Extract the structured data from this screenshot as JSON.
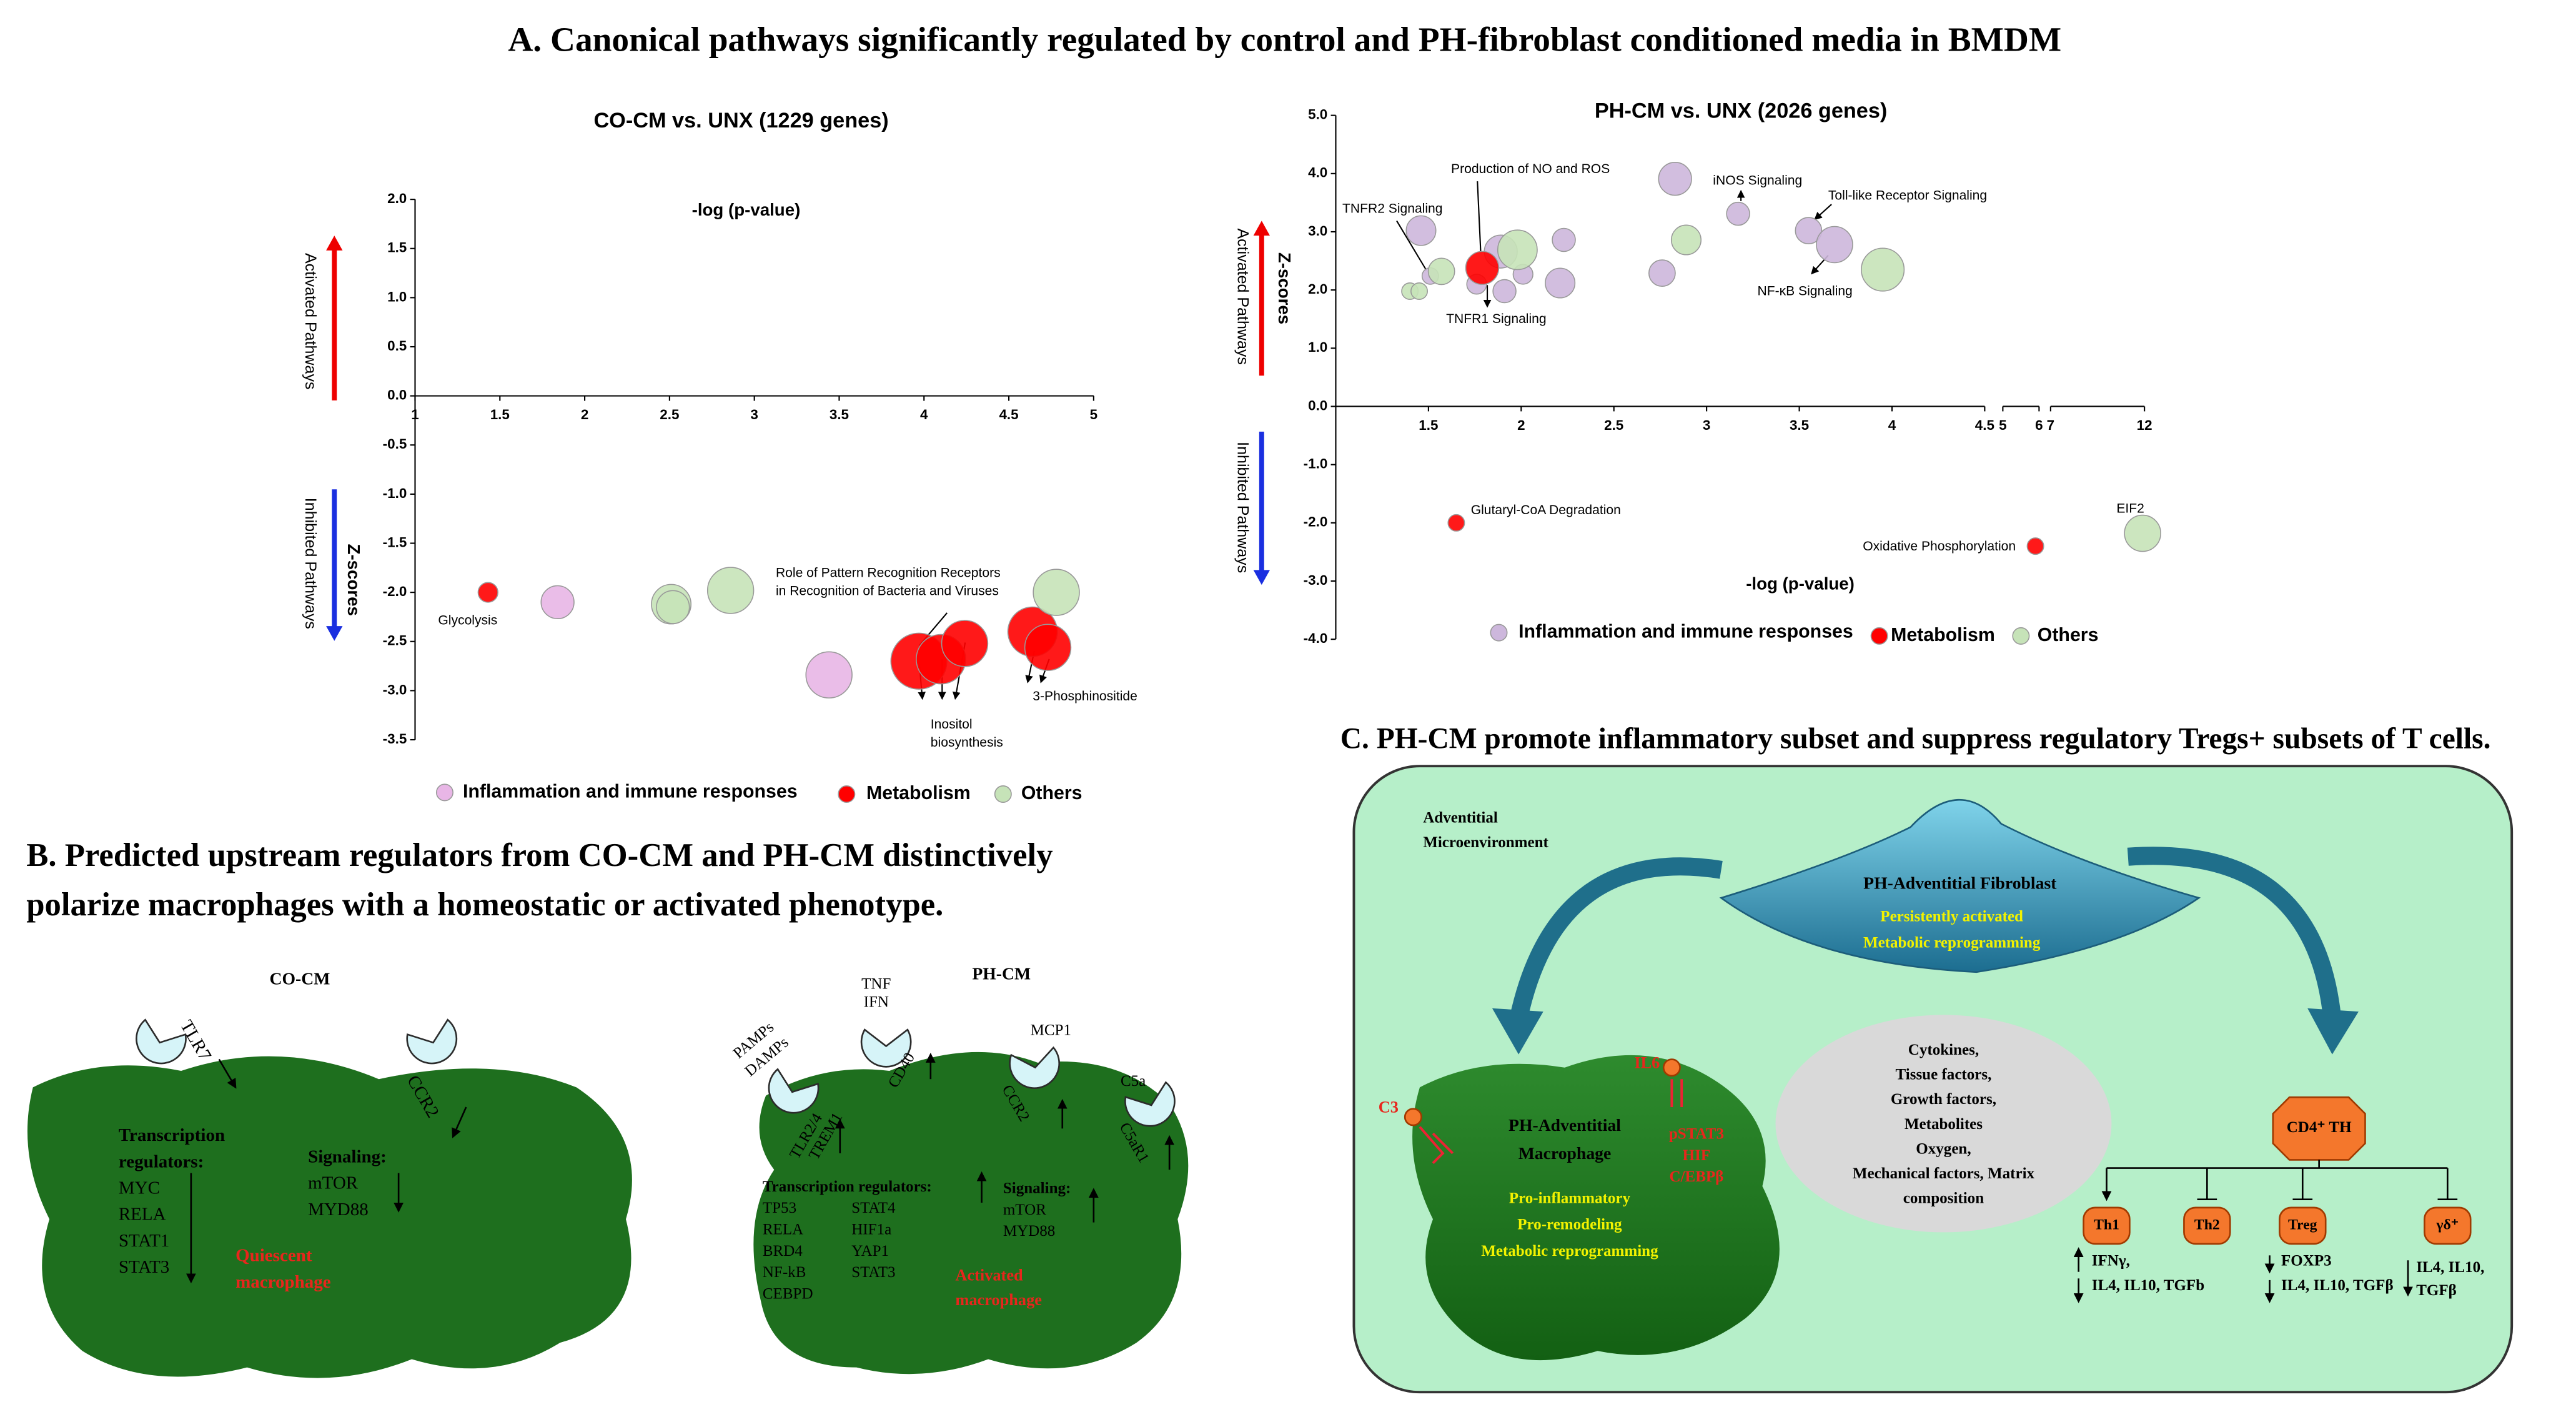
{
  "title": "A. Canonical pathways significantly regulated by control and PH-fibroblast conditioned media in BMDM",
  "chart_data": [
    {
      "type": "scatter",
      "title": "CO-CM vs. UNX  (1229 genes)",
      "xlabel": "-log (p-value)",
      "ylabel": "Z-scores",
      "y_up_label": "Activated Pathways",
      "y_down_label": "Inhibited Pathways",
      "annotations": [
        [
          "Glycolysis"
        ],
        [
          "Role of Pattern Recognition Receptors",
          "in Recognition of Bacteria and Viruses"
        ],
        [
          "Inositol",
          "biosynthesis"
        ],
        [
          "3-Phosphinositide"
        ]
      ],
      "xlim": [
        1,
        5
      ],
      "xticks": [
        1,
        1.5,
        2,
        2.5,
        3,
        3.5,
        4,
        4.5,
        5
      ],
      "ylim": [
        -3.5,
        2
      ],
      "yticks": [
        {
          "value": 2,
          "label": "2.0"
        },
        {
          "value": 1.5,
          "label": "1.5"
        },
        {
          "value": 1,
          "label": "1.0"
        },
        {
          "value": 0.5,
          "label": "0.5"
        },
        {
          "value": 0,
          "label": "0.0"
        },
        {
          "value": -0.5,
          "label": "-0.5"
        },
        {
          "value": -1,
          "label": "-1.0"
        },
        {
          "value": -1.5,
          "label": "-1.5"
        },
        {
          "value": -2,
          "label": "-2.0"
        },
        {
          "value": -2.5,
          "label": "-2.5"
        },
        {
          "value": -3,
          "label": "-3.0"
        },
        {
          "value": -3.5,
          "label": "-3.5"
        }
      ],
      "series": [
        {
          "name": "Inflammation and immune responses",
          "color": "#e8b6e6",
          "x": [
            1.84,
            3.44
          ],
          "values": [
            -2.1,
            -2.84
          ],
          "sizes": [
            10,
            14
          ]
        },
        {
          "name": "Metabolism",
          "color": "#ff0000",
          "x": [
            1.43,
            3.97,
            4.1,
            4.24,
            4.64,
            4.73
          ],
          "values": [
            -2.0,
            -2.7,
            -2.68,
            -2.52,
            -2.4,
            -2.56
          ],
          "sizes": [
            6,
            17,
            15,
            14,
            15,
            14
          ]
        },
        {
          "name": "Others",
          "color": "#c6e3b8",
          "x": [
            2.51,
            2.52,
            2.86,
            4.78
          ],
          "values": [
            -2.12,
            -2.15,
            -1.98,
            -2.0
          ],
          "sizes": [
            12,
            10,
            14,
            14
          ]
        }
      ]
    },
    {
      "type": "scatter",
      "title": "PH-CM vs. UNX  (2026 genes)",
      "xlabel": "-log (p-value)",
      "ylabel": "Z-scores",
      "y_up_label": "Activated Pathways",
      "y_down_label": "Inhibited Pathways",
      "annotations": [
        [
          "Production of NO and ROS"
        ],
        [
          "TNFR2 Signaling"
        ],
        [
          "iNOS Signaling"
        ],
        [
          "Toll-like Receptor Signaling"
        ],
        [
          "TNFR1 Signaling"
        ],
        [
          "NF-κB Signaling"
        ],
        [
          "Glutaryl-CoA Degradation"
        ],
        [
          "Oxidative Phosphorylation"
        ],
        [
          "EIF2"
        ]
      ],
      "xlim": [
        1,
        12
      ],
      "x_axis_breaks": [
        [
          4.5,
          5
        ],
        [
          6,
          7
        ]
      ],
      "xticks": [
        1.5,
        2,
        2.5,
        3,
        3.5,
        4,
        4.5,
        5,
        6,
        7,
        12
      ],
      "ylim": [
        -4,
        5
      ],
      "yticks": [
        {
          "value": 5,
          "label": "5.0"
        },
        {
          "value": 4,
          "label": "4.0"
        },
        {
          "value": 3,
          "label": "3.0"
        },
        {
          "value": 2,
          "label": "2.0"
        },
        {
          "value": 1,
          "label": "1.0"
        },
        {
          "value": 0,
          "label": "0.0"
        },
        {
          "value": -1,
          "label": "-1.0"
        },
        {
          "value": -2,
          "label": "-2.0"
        },
        {
          "value": -3,
          "label": "-3.0"
        },
        {
          "value": -4,
          "label": "-4.0"
        }
      ],
      "series": [
        {
          "name": "Inflammation and immune responses",
          "color": "#cdb7dc",
          "x": [
            1.46,
            1.51,
            1.76,
            1.89,
            1.91,
            2.01,
            2.23,
            2.21,
            2.83,
            2.76,
            3.17,
            3.55,
            3.69
          ],
          "values": [
            3.02,
            2.24,
            2.1,
            2.66,
            1.98,
            2.27,
            2.86,
            2.12,
            3.91,
            2.29,
            3.31,
            3.02,
            2.78
          ],
          "sizes": [
            9,
            5,
            6,
            10,
            7,
            6,
            7,
            9,
            10,
            8,
            7,
            8,
            11
          ]
        },
        {
          "name": "Metabolism",
          "color": "#ff0000",
          "x": [
            1.79,
            1.65,
            5.9
          ],
          "values": [
            2.38,
            -2.0,
            -2.4
          ],
          "sizes": [
            10,
            5,
            5
          ]
        },
        {
          "name": "Others",
          "color": "#c6e3b8",
          "x": [
            1.57,
            1.4,
            1.45,
            1.98,
            2.89,
            3.95,
            11.9
          ],
          "values": [
            2.32,
            1.98,
            1.98,
            2.69,
            2.86,
            2.35,
            -2.18
          ],
          "sizes": [
            8,
            5,
            5,
            12,
            9,
            13,
            11
          ]
        }
      ]
    }
  ],
  "panel_b": {
    "title": [
      "B. Predicted upstream regulators from CO-CM and PH-CM distinctively",
      "polarize macrophages with a homeostatic or activated phenotype."
    ],
    "co_cm": {
      "label": "CO-CM",
      "receptors": [
        "TLR7",
        "CCR2"
      ],
      "tr_heading": [
        "Transcription",
        "regulators:"
      ],
      "tr": [
        "MYC",
        "RELA",
        "STAT1",
        "STAT3"
      ],
      "sig_heading": "Signaling:",
      "sig": [
        "mTOR",
        "MYD88"
      ],
      "phenotype": [
        "Quiescent",
        "macrophage"
      ]
    },
    "ph_cm": {
      "label": "PH-CM",
      "ligands": [
        "PAMPs",
        "DAMPs",
        "TNF",
        "IFN",
        "MCP1",
        "C5a"
      ],
      "receptors": [
        "TLR2/4",
        "TREM1",
        "CD40",
        "CCR2",
        "C5aR1"
      ],
      "tr_heading": "Transcription  regulators:",
      "tr_a": [
        "TP53",
        "RELA",
        "BRD4",
        "NF-kB",
        "CEBPD"
      ],
      "tr_b": [
        "STAT4",
        "HIF1a",
        "YAP1",
        "STAT3"
      ],
      "sig_heading": "Signaling:",
      "sig": [
        "mTOR",
        "MYD88"
      ],
      "phenotype": [
        "Activated",
        "macrophage"
      ]
    }
  },
  "panel_c": {
    "title": "C. PH-CM promote inflammatory subset and suppress regulatory Tregs+ subsets of T cells.",
    "environment": [
      "Adventitial",
      "Microenvironment"
    ],
    "fibroblast": {
      "name": "PH-Adventitial Fibroblast",
      "traits": [
        "Persistently activated",
        "Metabolic reprogramming"
      ]
    },
    "macrophage": {
      "name": [
        "PH-Adventitial",
        "Macrophage"
      ],
      "traits": [
        "Pro-inflammatory",
        "Pro-remodeling",
        "Metabolic reprogramming"
      ],
      "signals": [
        "C3",
        "IL6"
      ],
      "factors": [
        "pSTAT3",
        "HIF",
        "C/EBPβ"
      ]
    },
    "mediators": [
      "Cytokines,",
      "Tissue factors,",
      "Growth factors,",
      "Metabolites",
      "Oxygen,",
      "Mechanical factors, Matrix",
      "composition"
    ],
    "t_cells": {
      "parent": "CD4⁺ TH",
      "subsets": [
        "Th1",
        "Th2",
        "Treg",
        "γδ⁺"
      ],
      "th1_markers": [
        "IFNγ,",
        "IL4, IL10, TGFb"
      ],
      "treg_markers": [
        "FOXP3",
        "IL4, IL10, TGFβ"
      ],
      "gd_markers": [
        "IL4, IL10,",
        "TGFβ"
      ]
    }
  }
}
